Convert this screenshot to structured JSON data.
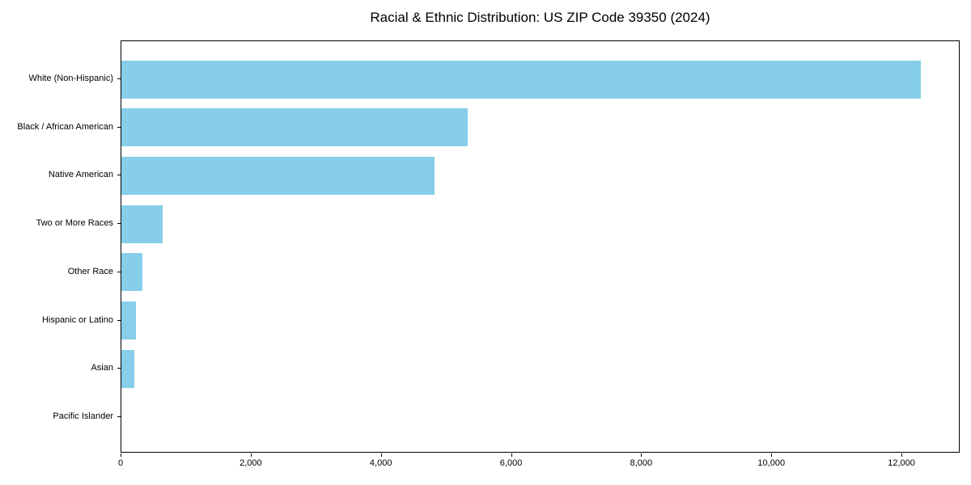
{
  "chart_data": {
    "type": "bar",
    "orientation": "horizontal",
    "title": "Racial & Ethnic Distribution: US ZIP Code 39350 (2024)",
    "categories": [
      "White (Non-Hispanic)",
      "Black / African American",
      "Native American",
      "Two or More Races",
      "Other Race",
      "Hispanic or Latino",
      "Asian",
      "Pacific Islander"
    ],
    "values": [
      12280,
      5320,
      4810,
      630,
      320,
      225,
      200,
      0
    ],
    "xlabel": "",
    "ylabel": "",
    "xlim": [
      0,
      12894
    ],
    "xticks": [
      0,
      2000,
      4000,
      6000,
      8000,
      10000,
      12000
    ],
    "xtick_labels": [
      "0",
      "2,000",
      "4,000",
      "6,000",
      "8,000",
      "10,000",
      "12,000"
    ],
    "bar_color": "#87CEEB",
    "axis_color": "#000000",
    "background_color": "#ffffff",
    "grid": false,
    "legend": null
  }
}
